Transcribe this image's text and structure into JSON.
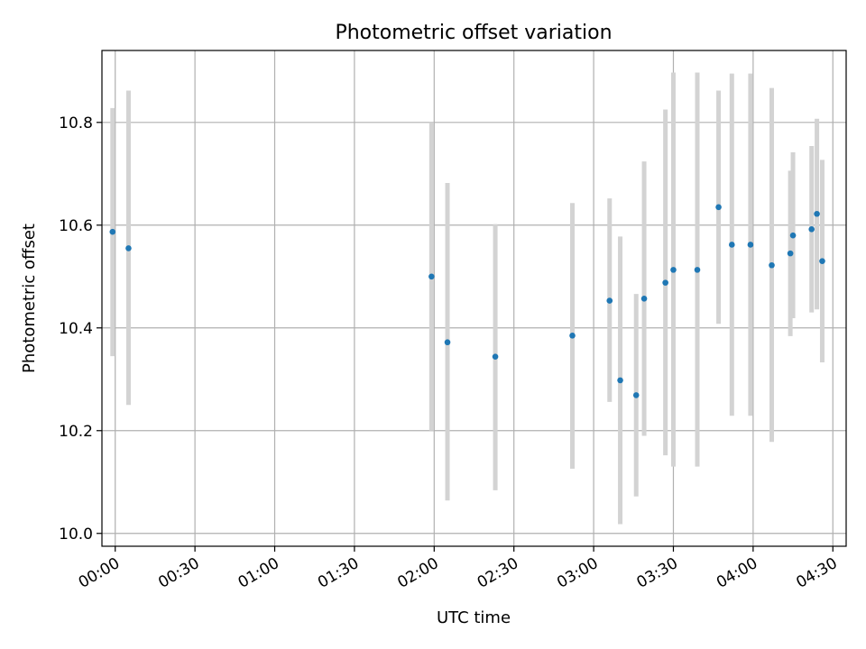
{
  "chart_data": {
    "type": "scatter",
    "title": "Photometric offset variation",
    "xlabel": "UTC time",
    "ylabel": "Photometric offset",
    "x_unit": "UTC time (HH:MM)",
    "xlim": [
      "-00:05",
      "04:35"
    ],
    "ylim": [
      9.975,
      10.94
    ],
    "x_ticks": [
      "00:00",
      "00:30",
      "01:00",
      "01:30",
      "02:00",
      "02:30",
      "03:00",
      "03:30",
      "04:00",
      "04:30"
    ],
    "y_ticks": [
      "10.0",
      "10.2",
      "10.4",
      "10.6",
      "10.8"
    ],
    "grid": true,
    "colors": {
      "point": "#1f77b4",
      "errorbar": "#d3d3d3",
      "grid": "#b0b0b0"
    },
    "points": [
      {
        "t": "23:59",
        "y": 10.587,
        "ylo": 10.345,
        "yhi": 10.828
      },
      {
        "t": "00:05",
        "y": 10.555,
        "ylo": 10.25,
        "yhi": 10.862
      },
      {
        "t": "01:59",
        "y": 10.5,
        "ylo": 10.2,
        "yhi": 10.8
      },
      {
        "t": "02:05",
        "y": 10.372,
        "ylo": 10.064,
        "yhi": 10.682
      },
      {
        "t": "02:23",
        "y": 10.344,
        "ylo": 10.084,
        "yhi": 10.602
      },
      {
        "t": "02:52",
        "y": 10.385,
        "ylo": 10.126,
        "yhi": 10.643
      },
      {
        "t": "03:06",
        "y": 10.453,
        "ylo": 10.256,
        "yhi": 10.652
      },
      {
        "t": "03:10",
        "y": 10.298,
        "ylo": 10.018,
        "yhi": 10.578
      },
      {
        "t": "03:16",
        "y": 10.269,
        "ylo": 10.072,
        "yhi": 10.466
      },
      {
        "t": "03:19",
        "y": 10.457,
        "ylo": 10.19,
        "yhi": 10.724
      },
      {
        "t": "03:27",
        "y": 10.488,
        "ylo": 10.152,
        "yhi": 10.825
      },
      {
        "t": "03:30",
        "y": 10.513,
        "ylo": 10.13,
        "yhi": 10.897
      },
      {
        "t": "03:39",
        "y": 10.513,
        "ylo": 10.13,
        "yhi": 10.897
      },
      {
        "t": "03:47",
        "y": 10.635,
        "ylo": 10.408,
        "yhi": 10.862
      },
      {
        "t": "03:52",
        "y": 10.562,
        "ylo": 10.229,
        "yhi": 10.895
      },
      {
        "t": "03:59",
        "y": 10.562,
        "ylo": 10.229,
        "yhi": 10.895
      },
      {
        "t": "04:07",
        "y": 10.522,
        "ylo": 10.178,
        "yhi": 10.867
      },
      {
        "t": "04:14",
        "y": 10.545,
        "ylo": 10.384,
        "yhi": 10.706
      },
      {
        "t": "04:15",
        "y": 10.58,
        "ylo": 10.419,
        "yhi": 10.742
      },
      {
        "t": "04:22",
        "y": 10.592,
        "ylo": 10.43,
        "yhi": 10.754
      },
      {
        "t": "04:24",
        "y": 10.622,
        "ylo": 10.436,
        "yhi": 10.807
      },
      {
        "t": "04:26",
        "y": 10.53,
        "ylo": 10.333,
        "yhi": 10.727
      }
    ]
  }
}
